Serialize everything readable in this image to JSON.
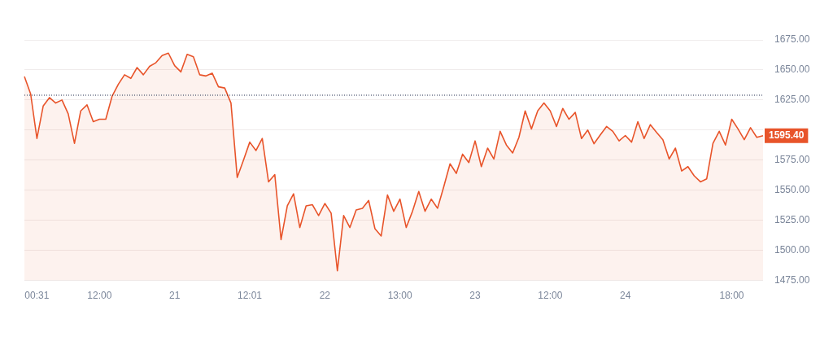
{
  "chart_data": {
    "type": "area",
    "categories": [
      null,
      null,
      "00:31",
      null,
      null,
      null,
      null,
      null,
      null,
      null,
      null,
      null,
      "12:00",
      null,
      null,
      null,
      null,
      null,
      null,
      null,
      null,
      null,
      null,
      null,
      "21",
      null,
      null,
      null,
      null,
      null,
      null,
      null,
      null,
      null,
      null,
      null,
      "12:01",
      null,
      null,
      null,
      null,
      null,
      null,
      null,
      null,
      null,
      null,
      null,
      "22",
      null,
      null,
      null,
      null,
      null,
      null,
      null,
      null,
      null,
      null,
      null,
      "13:00",
      null,
      null,
      null,
      null,
      null,
      null,
      null,
      null,
      null,
      null,
      null,
      "23",
      null,
      null,
      null,
      null,
      null,
      null,
      null,
      null,
      null,
      null,
      null,
      "12:00",
      null,
      null,
      null,
      null,
      null,
      null,
      null,
      null,
      null,
      null,
      null,
      "24",
      null,
      null,
      null,
      null,
      null,
      null,
      null,
      null,
      null,
      null,
      null,
      null,
      null,
      null,
      null,
      null,
      "18:00",
      null,
      null,
      null,
      null,
      null
    ],
    "series": [
      {
        "color": "#e8542a",
        "values": [
          1644.6,
          1630,
          1593,
          1620,
          1627,
          1622.5,
          1625,
          1613.5,
          1589,
          1616,
          1621,
          1607,
          1609,
          1609,
          1628,
          1638,
          1646,
          1643,
          1652,
          1646,
          1653,
          1656,
          1662,
          1664,
          1653.6,
          1648.4,
          1663,
          1661,
          1646,
          1645,
          1647.3,
          1636,
          1635,
          1622.5,
          1560.6,
          1575,
          1590,
          1583,
          1593,
          1557,
          1563,
          1509,
          1537,
          1547,
          1519,
          1537,
          1538,
          1529,
          1539,
          1531,
          1483,
          1529,
          1519,
          1533.6,
          1535,
          1541.5,
          1518,
          1512,
          1546,
          1532.5,
          1542.6,
          1519,
          1532.5,
          1549,
          1532.5,
          1542.6,
          1535,
          1553,
          1572,
          1564,
          1580,
          1573,
          1591,
          1569.6,
          1585,
          1576,
          1599,
          1587.6,
          1581,
          1594,
          1616,
          1601,
          1616,
          1622.5,
          1616,
          1603,
          1618,
          1609,
          1614.7,
          1593,
          1600,
          1588.7,
          1596,
          1603,
          1599,
          1591,
          1595.5,
          1590,
          1607,
          1593,
          1604.5,
          1598,
          1592,
          1576,
          1585,
          1566,
          1569.6,
          1562,
          1557,
          1559.5,
          1589,
          1599,
          1587.6,
          1609,
          1601,
          1592,
          1602,
          1594,
          1595.4
        ]
      }
    ],
    "ylim": [
      1475,
      1675
    ],
    "yticks": [
      {
        "value": 1475,
        "label": "1475.00"
      },
      {
        "value": 1500,
        "label": "1500.00"
      },
      {
        "value": 1525,
        "label": "1525.00"
      },
      {
        "value": 1550,
        "label": "1550.00"
      },
      {
        "value": 1575,
        "label": "1575.00"
      },
      {
        "value": 1600,
        "label": null
      },
      {
        "value": 1625,
        "label": "1625.00"
      },
      {
        "value": 1650,
        "label": "1650.00"
      },
      {
        "value": 1675,
        "label": "1675.00"
      }
    ],
    "grid": "y",
    "legend": false,
    "ref_lines": [
      {
        "axis": "y",
        "value": 1629,
        "color": "#1e2a4a",
        "line_style": "dotted"
      }
    ],
    "annotations": [
      "1595.40"
    ]
  }
}
